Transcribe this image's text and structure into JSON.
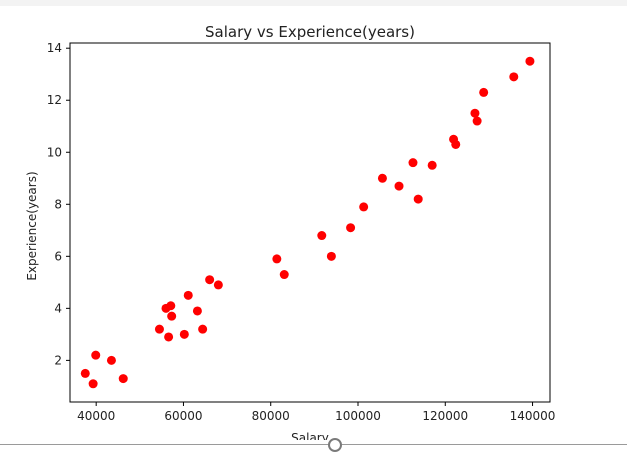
{
  "chart_data": {
    "type": "scatter",
    "title": "Salary vs Experience(years)",
    "xlabel": "Salary",
    "ylabel": "Experience(years)",
    "xlim": [
      34000,
      144000
    ],
    "ylim": [
      0.4,
      14.2
    ],
    "xticks": [
      40000,
      60000,
      80000,
      100000,
      120000,
      140000
    ],
    "yticks": [
      2,
      4,
      6,
      8,
      10,
      12,
      14
    ],
    "grid": false,
    "marker_color": "#ff0000",
    "points": [
      {
        "x": 37500,
        "y": 1.5
      },
      {
        "x": 39300,
        "y": 1.1
      },
      {
        "x": 39900,
        "y": 2.2
      },
      {
        "x": 43500,
        "y": 2.0
      },
      {
        "x": 46200,
        "y": 1.3
      },
      {
        "x": 54500,
        "y": 3.2
      },
      {
        "x": 56000,
        "y": 4.0
      },
      {
        "x": 56600,
        "y": 2.9
      },
      {
        "x": 57100,
        "y": 4.1
      },
      {
        "x": 57300,
        "y": 3.7
      },
      {
        "x": 60200,
        "y": 3.0
      },
      {
        "x": 61100,
        "y": 4.5
      },
      {
        "x": 63200,
        "y": 3.9
      },
      {
        "x": 64400,
        "y": 3.2
      },
      {
        "x": 66000,
        "y": 5.1
      },
      {
        "x": 68000,
        "y": 4.9
      },
      {
        "x": 81400,
        "y": 5.9
      },
      {
        "x": 83100,
        "y": 5.3
      },
      {
        "x": 91700,
        "y": 6.8
      },
      {
        "x": 93900,
        "y": 6.0
      },
      {
        "x": 98300,
        "y": 7.1
      },
      {
        "x": 101300,
        "y": 7.9
      },
      {
        "x": 105600,
        "y": 9.0
      },
      {
        "x": 109400,
        "y": 8.7
      },
      {
        "x": 112600,
        "y": 9.6
      },
      {
        "x": 113800,
        "y": 8.2
      },
      {
        "x": 117000,
        "y": 9.5
      },
      {
        "x": 121900,
        "y": 10.5
      },
      {
        "x": 122400,
        "y": 10.3
      },
      {
        "x": 126800,
        "y": 11.5
      },
      {
        "x": 127300,
        "y": 11.2
      },
      {
        "x": 128800,
        "y": 12.3
      },
      {
        "x": 135700,
        "y": 12.9
      },
      {
        "x": 139400,
        "y": 13.5
      }
    ]
  }
}
